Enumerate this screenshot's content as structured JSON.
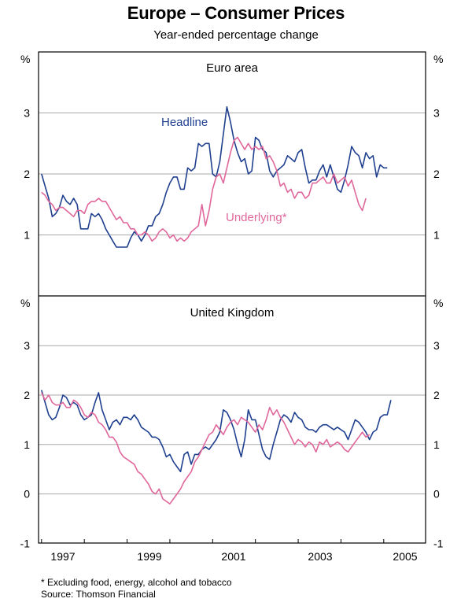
{
  "title": "Europe – Consumer Prices",
  "subtitle": "Year-ended percentage change",
  "footnotes": {
    "note": "*  Excluding food, energy, alcohol and tobacco",
    "source": "Source: Thomson Financial"
  },
  "colors": {
    "headline": "#1f3f8f",
    "underlying": "#e0679b",
    "grid": "#a9a9a9",
    "axis": "#000000"
  },
  "chart_data": [
    {
      "type": "line",
      "title": "Euro area",
      "ylabel_left": "%",
      "ylabel_right": "%",
      "ylim": [
        0,
        4
      ],
      "yticks": [
        1,
        2,
        3
      ],
      "xlim": [
        1996.5,
        2005.25
      ],
      "x_tick_labels": [
        "1997",
        "1999",
        "2001",
        "2003",
        "2005"
      ],
      "series": [
        {
          "name": "Headline",
          "color_key": "headline",
          "x_start": 1996.5,
          "x_step": 0.08333,
          "values": [
            2.0,
            1.8,
            1.6,
            1.3,
            1.35,
            1.45,
            1.65,
            1.55,
            1.5,
            1.6,
            1.5,
            1.1,
            1.1,
            1.1,
            1.35,
            1.3,
            1.35,
            1.25,
            1.1,
            1.0,
            0.9,
            0.8,
            0.8,
            0.8,
            0.8,
            0.95,
            1.05,
            1.0,
            0.9,
            1.0,
            1.15,
            1.15,
            1.3,
            1.35,
            1.5,
            1.7,
            1.85,
            1.95,
            1.95,
            1.75,
            1.75,
            2.1,
            2.05,
            2.1,
            2.5,
            2.45,
            2.5,
            2.5,
            2.0,
            1.95,
            2.2,
            2.65,
            3.1,
            2.85,
            2.55,
            2.35,
            2.2,
            2.25,
            2.0,
            2.05,
            2.6,
            2.55,
            2.4,
            2.35,
            2.05,
            1.95,
            2.05,
            2.1,
            2.15,
            2.3,
            2.25,
            2.2,
            2.35,
            2.4,
            2.1,
            1.85,
            1.9,
            1.9,
            2.05,
            2.15,
            1.95,
            2.15,
            1.95,
            1.75,
            1.7,
            1.9,
            2.15,
            2.45,
            2.35,
            2.3,
            2.1,
            2.35,
            2.25,
            2.3,
            1.95,
            2.15,
            2.1,
            2.1
          ]
        },
        {
          "name": "Underlying*",
          "color_key": "underlying",
          "x_start": 1996.5,
          "x_step": 0.08333,
          "values": [
            1.7,
            1.65,
            1.55,
            1.5,
            1.4,
            1.45,
            1.45,
            1.4,
            1.35,
            1.3,
            1.4,
            1.4,
            1.35,
            1.5,
            1.55,
            1.55,
            1.6,
            1.55,
            1.55,
            1.45,
            1.35,
            1.25,
            1.3,
            1.2,
            1.2,
            1.1,
            1.1,
            1.0,
            1.0,
            1.05,
            1.0,
            0.9,
            0.95,
            1.05,
            1.1,
            1.05,
            0.95,
            1.0,
            0.9,
            0.95,
            0.9,
            0.95,
            1.05,
            1.1,
            1.15,
            1.5,
            1.15,
            1.4,
            1.75,
            1.95,
            2.0,
            1.85,
            2.1,
            2.35,
            2.55,
            2.6,
            2.5,
            2.4,
            2.5,
            2.4,
            2.45,
            2.4,
            2.45,
            2.25,
            2.3,
            2.2,
            2.05,
            1.8,
            1.85,
            1.7,
            1.75,
            1.6,
            1.7,
            1.7,
            1.6,
            1.65,
            1.85,
            1.85,
            1.9,
            1.95,
            1.85,
            1.85,
            2.0,
            1.85,
            1.9,
            1.95,
            1.8,
            1.9,
            1.7,
            1.5,
            1.4,
            1.6
          ]
        }
      ],
      "annotations": [
        {
          "text": "Headline",
          "series": "Headline"
        },
        {
          "text": "Underlying*",
          "series": "Underlying*"
        }
      ]
    },
    {
      "type": "line",
      "title": "United Kingdom",
      "ylabel_left": "%",
      "ylabel_right": "%",
      "ylim": [
        -1,
        4
      ],
      "yticks": [
        -1,
        0,
        1,
        2,
        3
      ],
      "xlim": [
        1996.5,
        2005.25
      ],
      "x_tick_labels": [
        "1997",
        "1999",
        "2001",
        "2003",
        "2005"
      ],
      "series": [
        {
          "name": "Headline",
          "color_key": "headline",
          "x_start": 1996.5,
          "x_step": 0.08333,
          "values": [
            2.1,
            1.85,
            1.6,
            1.5,
            1.55,
            1.75,
            2.0,
            1.95,
            1.8,
            1.85,
            1.8,
            1.6,
            1.5,
            1.55,
            1.6,
            1.85,
            2.05,
            1.7,
            1.5,
            1.3,
            1.45,
            1.5,
            1.4,
            1.55,
            1.55,
            1.5,
            1.6,
            1.5,
            1.35,
            1.3,
            1.25,
            1.15,
            1.15,
            1.1,
            0.95,
            0.75,
            0.8,
            0.65,
            0.55,
            0.45,
            0.8,
            0.85,
            0.6,
            0.8,
            0.8,
            0.9,
            0.95,
            0.9,
            1.0,
            1.1,
            1.25,
            1.7,
            1.65,
            1.5,
            1.3,
            1.0,
            0.75,
            1.1,
            1.7,
            1.5,
            1.5,
            1.2,
            0.9,
            0.75,
            0.7,
            1.0,
            1.25,
            1.5,
            1.6,
            1.55,
            1.45,
            1.65,
            1.55,
            1.5,
            1.35,
            1.3,
            1.3,
            1.25,
            1.35,
            1.4,
            1.4,
            1.35,
            1.3,
            1.35,
            1.3,
            1.25,
            1.1,
            1.3,
            1.5,
            1.45,
            1.35,
            1.25,
            1.1,
            1.25,
            1.3,
            1.55,
            1.6,
            1.6,
            1.9
          ]
        },
        {
          "name": "Underlying*",
          "color_key": "underlying",
          "x_start": 1996.5,
          "x_step": 0.08333,
          "values": [
            2.05,
            1.9,
            2.0,
            1.85,
            1.8,
            1.8,
            1.85,
            1.75,
            1.75,
            1.9,
            1.85,
            1.75,
            1.6,
            1.55,
            1.65,
            1.6,
            1.45,
            1.4,
            1.3,
            1.15,
            1.15,
            1.05,
            0.85,
            0.75,
            0.7,
            0.65,
            0.6,
            0.45,
            0.4,
            0.3,
            0.2,
            0.05,
            0.0,
            0.1,
            -0.1,
            -0.15,
            -0.2,
            -0.1,
            0.0,
            0.1,
            0.25,
            0.35,
            0.45,
            0.65,
            0.75,
            0.9,
            1.05,
            1.2,
            1.25,
            1.4,
            1.3,
            1.2,
            1.35,
            1.45,
            1.5,
            1.4,
            1.55,
            1.5,
            1.45,
            1.35,
            1.25,
            1.4,
            1.3,
            1.5,
            1.75,
            1.6,
            1.7,
            1.55,
            1.45,
            1.3,
            1.15,
            1.0,
            1.1,
            1.05,
            0.95,
            1.05,
            1.0,
            0.85,
            1.05,
            1.0,
            1.1,
            0.95,
            1.0,
            1.05,
            1.0,
            0.9,
            0.85,
            0.95,
            1.05,
            1.15,
            1.25,
            1.15,
            1.2
          ]
        }
      ]
    }
  ]
}
